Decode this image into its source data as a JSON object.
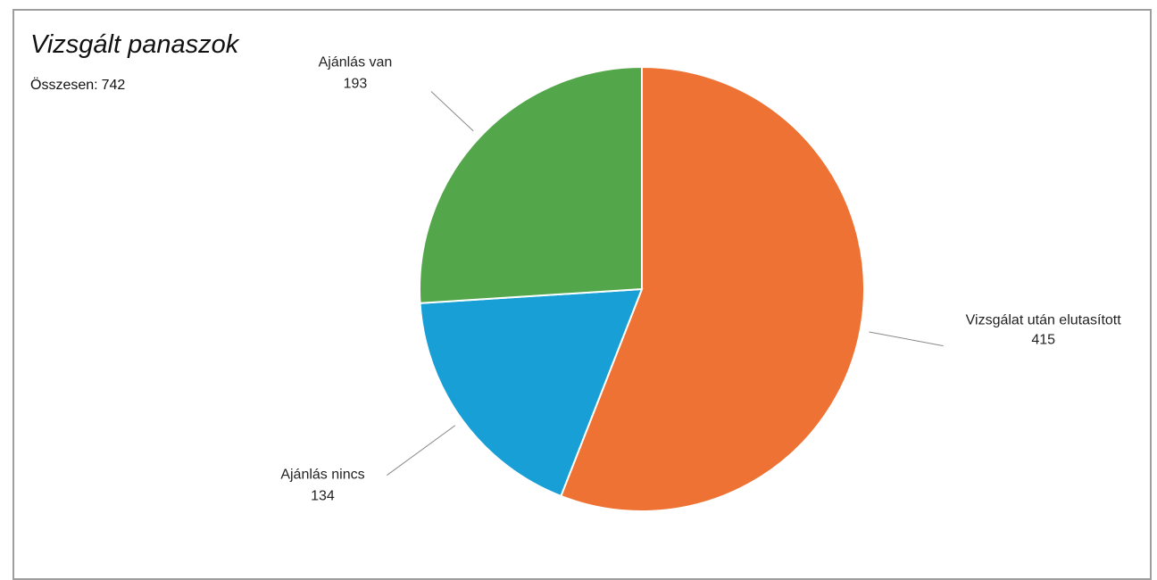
{
  "title": "Vizsgált panaszok",
  "subtitle": {
    "label": "Összesen:",
    "value": "742"
  },
  "chart_data": {
    "type": "pie",
    "title": "Vizsgált panaszok",
    "subtitle": "Összesen: 742",
    "legend": "none",
    "labels_position": "outside-with-leader-lines",
    "slices": [
      {
        "name": "Vizsgálat után elutasított",
        "value": 415,
        "color": "#ed7233"
      },
      {
        "name": "Ajánlás nincs",
        "value": 134,
        "color": "#179fd6"
      },
      {
        "name": "Ajánlás van",
        "value": 193,
        "color": "#53a74a"
      }
    ]
  }
}
